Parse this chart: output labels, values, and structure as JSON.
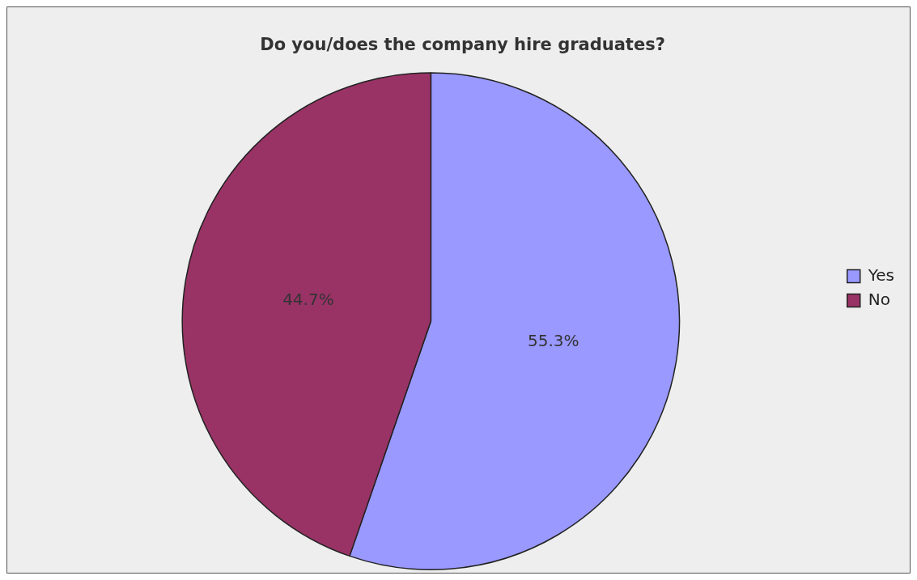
{
  "chart_data": {
    "type": "pie",
    "title": "Do you/does the company hire graduates?",
    "categories": [
      "Yes",
      "No"
    ],
    "values": [
      55.3,
      44.7
    ],
    "colors": [
      "#9999ff",
      "#993366"
    ],
    "value_labels": [
      "55.3%",
      "44.7%"
    ],
    "legend": "right"
  }
}
